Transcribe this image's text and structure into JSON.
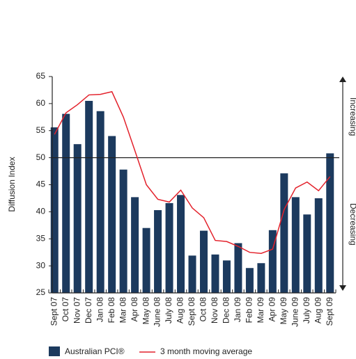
{
  "chart_data": {
    "type": "bar_line",
    "y_label": "Diffusion Index",
    "categories": [
      "Sept 07",
      "Oct 07",
      "Nov 07",
      "Dec 07",
      "Jan 08",
      "Feb 08",
      "Mar 08",
      "Apr 08",
      "May 08",
      "June 08",
      "July 08",
      "Aug 08",
      "Sept 08",
      "Oct 08",
      "Nov 08",
      "Dec 08",
      "Jan 09",
      "Feb 09",
      "Mar 09",
      "Apr 09",
      "May 09",
      "June 09",
      "July 09",
      "Aug 09",
      "Sept 09"
    ],
    "series": [
      {
        "name": "Australian PCI®",
        "type": "bar",
        "color": "#1c3a5e",
        "values": [
          55.6,
          58.1,
          52.5,
          60.5,
          58.6,
          54.0,
          47.8,
          42.7,
          37.0,
          40.3,
          41.6,
          43.1,
          31.9,
          36.5,
          32.1,
          31.0,
          34.2,
          29.6,
          30.5,
          36.6,
          47.1,
          42.7,
          39.5,
          42.5,
          50.8
        ]
      },
      {
        "name": "3 month moving average",
        "type": "line",
        "color": "#e3212b",
        "values": [
          54.3,
          58.3,
          59.8,
          61.6,
          61.7,
          62.2,
          57.5,
          51.3,
          45.0,
          42.3,
          41.8,
          44.0,
          40.7,
          38.9,
          34.7,
          34.5,
          33.6,
          32.5,
          32.3,
          33.1,
          40.4,
          44.4,
          45.5,
          43.9,
          46.5
        ]
      }
    ],
    "ylim": [
      25,
      65
    ],
    "yticks": [
      25,
      30,
      35,
      40,
      45,
      50,
      55,
      60,
      65
    ],
    "reference_line": 50,
    "annotations": [
      "Increasing",
      "Decreasing"
    ]
  }
}
